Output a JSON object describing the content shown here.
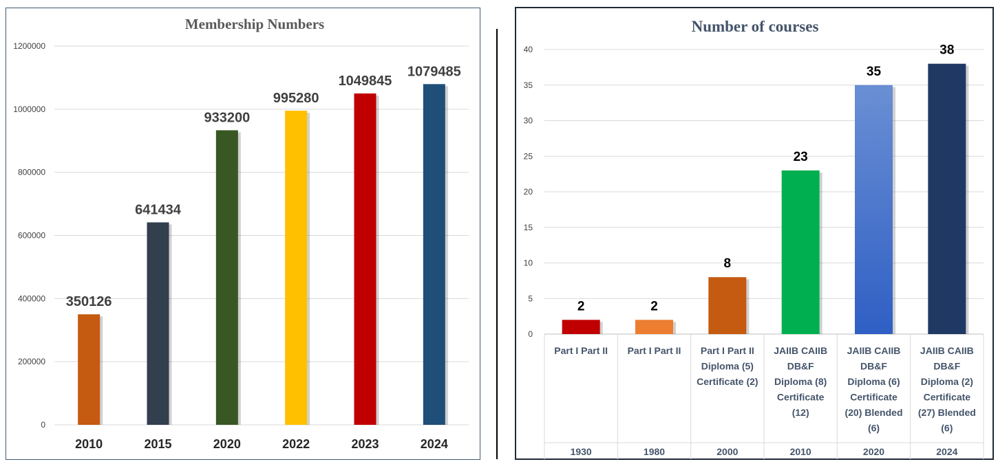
{
  "chart_data": [
    {
      "type": "bar",
      "title": "Membership Numbers",
      "categories": [
        "2010",
        "2015",
        "2020",
        "2022",
        "2023",
        "2024"
      ],
      "values": [
        350126,
        641434,
        933200,
        995280,
        1049845,
        1079485
      ],
      "data_labels": [
        "350126",
        "641434",
        "933200",
        "995280",
        "1049845",
        "1079485"
      ],
      "colors": [
        "#c55a11",
        "#323f4f",
        "#385723",
        "#ffc000",
        "#c00000",
        "#1f4e79"
      ],
      "ylim": [
        0,
        1200000
      ],
      "yticks": [
        "0",
        "200000",
        "400000",
        "600000",
        "800000",
        "1000000",
        "1200000"
      ],
      "grid": true,
      "legend": "none"
    },
    {
      "type": "bar",
      "title": "Number of courses",
      "categories": [
        "1930",
        "1980",
        "2000",
        "2010",
        "2020",
        "2024"
      ],
      "category_details": [
        [
          "Part I Part II"
        ],
        [
          "Part I Part II"
        ],
        [
          "Part I Part II",
          "Diploma (5)",
          "Certificate (2)"
        ],
        [
          "JAIIB CAIIB",
          "DB&F",
          "Diploma (8)",
          "Certificate",
          "(12)"
        ],
        [
          "JAIIB CAIIB",
          "DB&F",
          "Diploma (6)",
          "Certificate",
          "(20) Blended",
          "(6)"
        ],
        [
          "JAIIB CAIIB",
          "DB&F",
          "Diploma (2)",
          "Certificate",
          "(27) Blended",
          "(6)"
        ]
      ],
      "values": [
        2,
        2,
        8,
        23,
        35,
        38
      ],
      "data_labels": [
        "2",
        "2",
        "8",
        "23",
        "35",
        "38"
      ],
      "colors": [
        "#c00000",
        "#ed7d31",
        "#c55a11",
        "#00b050",
        "#4472c4",
        "#203864"
      ],
      "ylim": [
        0,
        40
      ],
      "yticks": [
        "0",
        "5",
        "10",
        "15",
        "20",
        "25",
        "30",
        "35",
        "40"
      ],
      "grid": true,
      "legend": "none"
    }
  ]
}
